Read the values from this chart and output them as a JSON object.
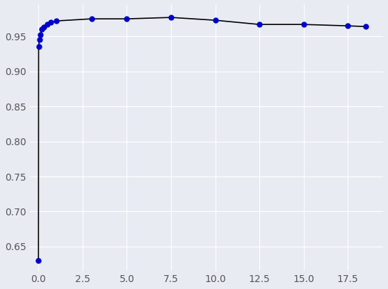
{
  "x": [
    0.001,
    0.01,
    0.05,
    0.1,
    0.2,
    0.3,
    0.5,
    0.7,
    1.0,
    3.0,
    5.0,
    7.5,
    10.0,
    12.5,
    15.0,
    17.5,
    18.5
  ],
  "y": [
    0.63,
    0.935,
    0.945,
    0.952,
    0.96,
    0.963,
    0.967,
    0.97,
    0.972,
    0.975,
    0.975,
    0.977,
    0.973,
    0.967,
    0.967,
    0.965,
    0.964
  ],
  "line_color": "#000000",
  "marker_color": "#0000CC",
  "marker_size": 5,
  "bg_color": "#E8EBF2",
  "xlim": [
    -0.5,
    19.5
  ],
  "ylim": [
    0.615,
    0.995
  ],
  "xticks": [
    0.0,
    2.5,
    5.0,
    7.5,
    10.0,
    12.5,
    15.0,
    17.5
  ],
  "yticks": [
    0.65,
    0.7,
    0.75,
    0.8,
    0.85,
    0.9,
    0.95
  ],
  "figsize": [
    5.58,
    4.16
  ],
  "dpi": 100
}
